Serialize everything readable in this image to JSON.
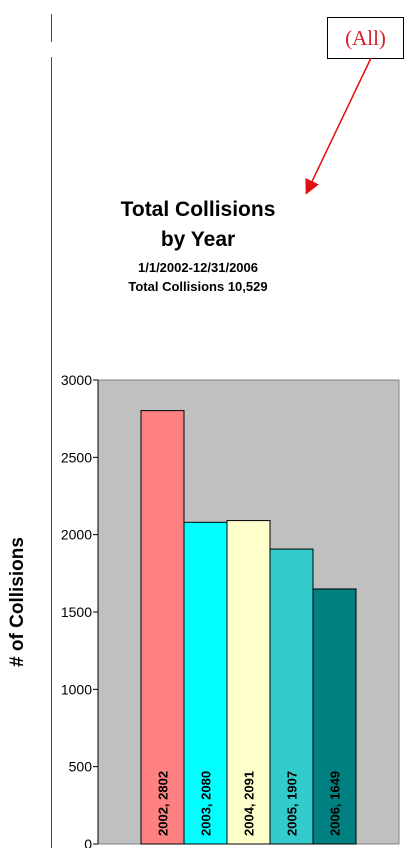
{
  "filter": {
    "label": "(All)"
  },
  "chart_data": {
    "type": "bar",
    "title": "Total Collisions",
    "subtitle": "by Year",
    "date_range": "1/1/2002-12/31/2006",
    "total_label": "Total Collisions 10,529",
    "ylabel": "# of Collisions",
    "xlabel": "",
    "ylim": [
      0,
      3000
    ],
    "yticks": [
      0,
      500,
      1000,
      1500,
      2000,
      2500,
      3000
    ],
    "categories": [
      "2002",
      "2003",
      "2004",
      "2005",
      "2006"
    ],
    "values": [
      2802,
      2080,
      2091,
      1907,
      1649
    ],
    "data_labels": [
      "2002, 2802",
      "2003, 2080",
      "2004, 2091",
      "2005, 1907",
      "2006, 1649"
    ],
    "bar_colors": [
      "#ff8080",
      "#00ffff",
      "#ffffcc",
      "#33cccc",
      "#008080"
    ],
    "plot_background": "#c0c0c0",
    "grid": false,
    "legend": "none"
  }
}
